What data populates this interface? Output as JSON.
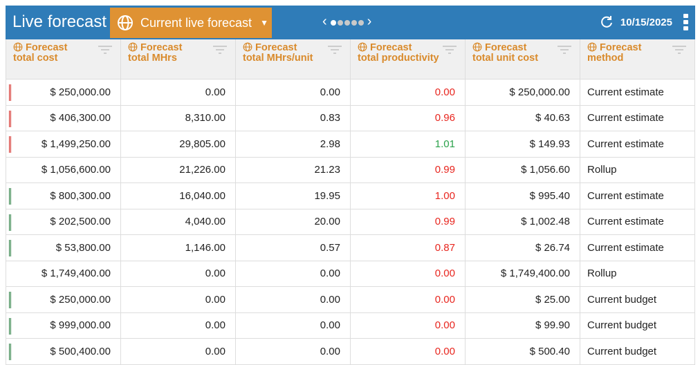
{
  "header": {
    "title": "Live forecast",
    "dropdown_label": "Current live forecast",
    "date": "10/15/2025",
    "pager_dots": 5,
    "active_dot": 1
  },
  "columns": [
    {
      "line1": "Forecast",
      "line2": "total cost"
    },
    {
      "line1": "Forecast",
      "line2": "total MHrs"
    },
    {
      "line1": "Forecast",
      "line2": "total MHrs/unit"
    },
    {
      "line1": "Forecast",
      "line2": "total productivity"
    },
    {
      "line1": "Forecast",
      "line2": "total unit cost"
    },
    {
      "line1": "Forecast",
      "line2": "method"
    }
  ],
  "colors": {
    "header_bar": "#2f7cb8",
    "accent": "#df9233",
    "negative": "#e8251e",
    "positive": "#2aa14a"
  },
  "rows": [
    {
      "indicator": "red",
      "cost": "$ 250,000.00",
      "mhrs": "0.00",
      "mhrs_unit": "0.00",
      "prod": "0.00",
      "prod_status": "red",
      "unit_cost": "$ 250,000.00",
      "method": "Current estimate"
    },
    {
      "indicator": "red",
      "cost": "$ 406,300.00",
      "mhrs": "8,310.00",
      "mhrs_unit": "0.83",
      "prod": "0.96",
      "prod_status": "red",
      "unit_cost": "$ 40.63",
      "method": "Current estimate"
    },
    {
      "indicator": "red",
      "cost": "$ 1,499,250.00",
      "mhrs": "29,805.00",
      "mhrs_unit": "2.98",
      "prod": "1.01",
      "prod_status": "green",
      "unit_cost": "$ 149.93",
      "method": "Current estimate"
    },
    {
      "indicator": "none",
      "cost": "$ 1,056,600.00",
      "mhrs": "21,226.00",
      "mhrs_unit": "21.23",
      "prod": "0.99",
      "prod_status": "red",
      "unit_cost": "$ 1,056.60",
      "method": "Rollup"
    },
    {
      "indicator": "green",
      "cost": "$ 800,300.00",
      "mhrs": "16,040.00",
      "mhrs_unit": "19.95",
      "prod": "1.00",
      "prod_status": "red",
      "unit_cost": "$ 995.40",
      "method": "Current estimate"
    },
    {
      "indicator": "green",
      "cost": "$ 202,500.00",
      "mhrs": "4,040.00",
      "mhrs_unit": "20.00",
      "prod": "0.99",
      "prod_status": "red",
      "unit_cost": "$ 1,002.48",
      "method": "Current estimate"
    },
    {
      "indicator": "green",
      "cost": "$ 53,800.00",
      "mhrs": "1,146.00",
      "mhrs_unit": "0.57",
      "prod": "0.87",
      "prod_status": "red",
      "unit_cost": "$ 26.74",
      "method": "Current estimate"
    },
    {
      "indicator": "none",
      "cost": "$ 1,749,400.00",
      "mhrs": "0.00",
      "mhrs_unit": "0.00",
      "prod": "0.00",
      "prod_status": "red",
      "unit_cost": "$ 1,749,400.00",
      "method": "Rollup"
    },
    {
      "indicator": "green",
      "cost": "$ 250,000.00",
      "mhrs": "0.00",
      "mhrs_unit": "0.00",
      "prod": "0.00",
      "prod_status": "red",
      "unit_cost": "$ 25.00",
      "method": "Current budget"
    },
    {
      "indicator": "green",
      "cost": "$ 999,000.00",
      "mhrs": "0.00",
      "mhrs_unit": "0.00",
      "prod": "0.00",
      "prod_status": "red",
      "unit_cost": "$ 99.90",
      "method": "Current budget"
    },
    {
      "indicator": "green",
      "cost": "$ 500,400.00",
      "mhrs": "0.00",
      "mhrs_unit": "0.00",
      "prod": "0.00",
      "prod_status": "red",
      "unit_cost": "$ 500.40",
      "method": "Current budget"
    }
  ]
}
